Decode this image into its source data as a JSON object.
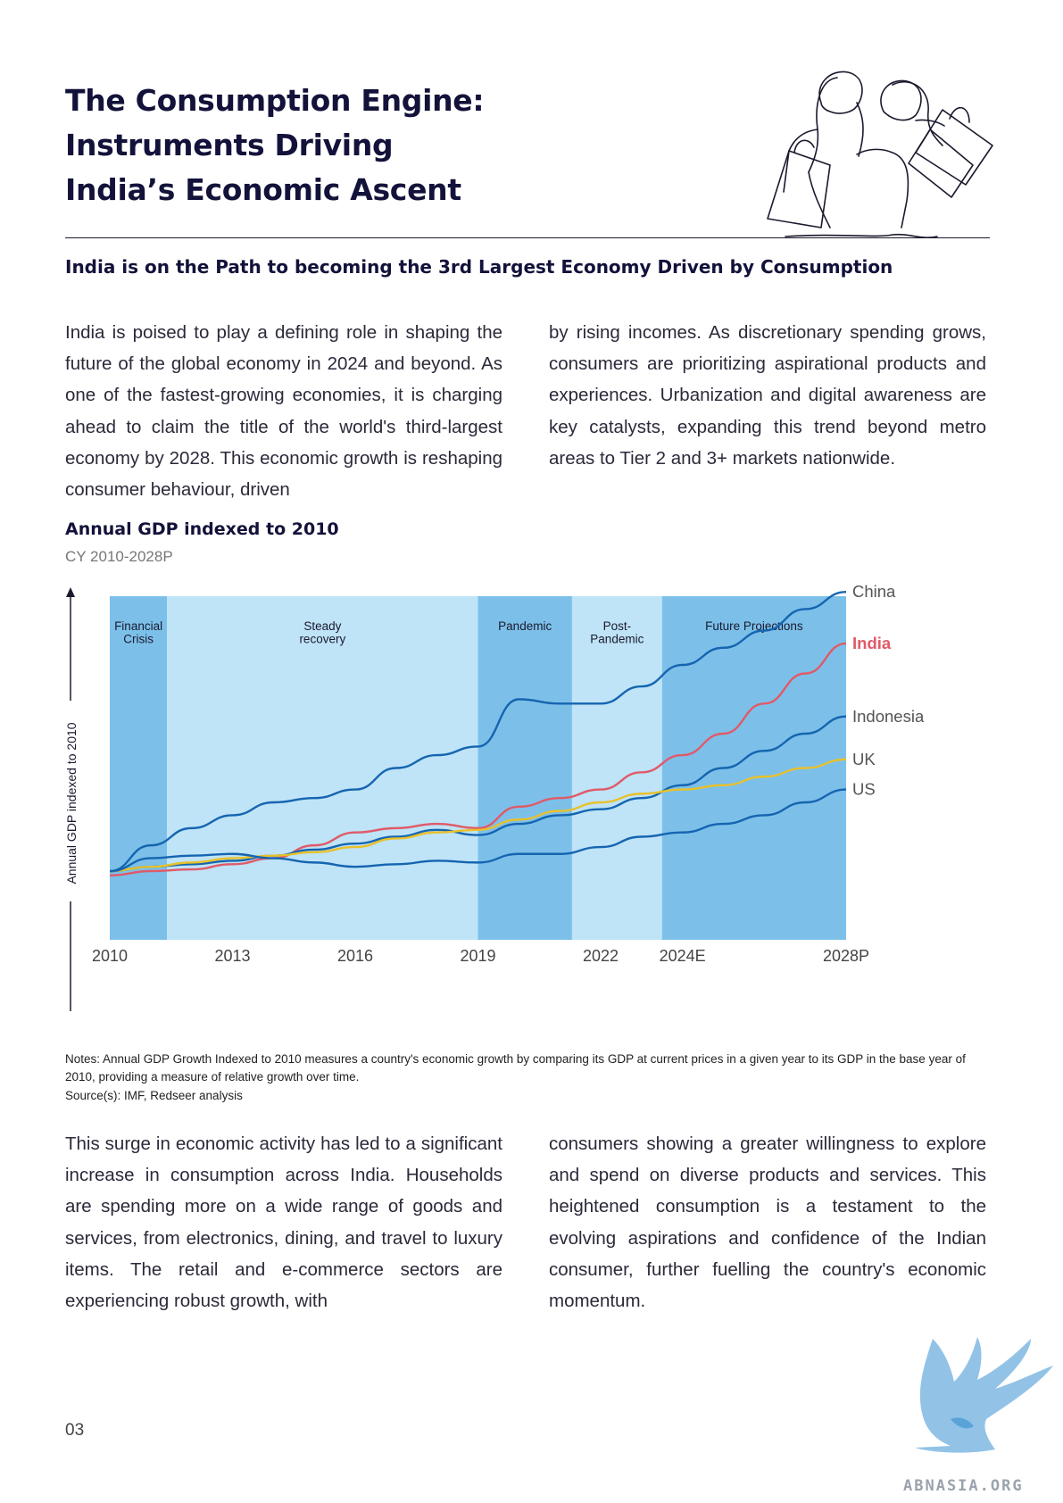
{
  "title_lines": [
    "The Consumption Engine:",
    "Instruments Driving",
    "India’s Economic Ascent"
  ],
  "subtitle": "India is on the Path to becoming the 3rd Largest Economy Driven by Consumption",
  "intro_col1": "India is poised to play a defining role in shaping the future of the global economy in 2024 and beyond. As one of the fastest-growing economies, it is charging ahead to claim the title of the world's third-largest economy by 2028. This economic growth is reshaping consumer behaviour, driven",
  "intro_col2": "by rising incomes. As discretionary spending grows, consumers are prioritizing aspirational products and experiences. Urbanization and digital awareness are key catalysts, expanding this trend beyond metro areas to Tier 2 and 3+ markets nationwide.",
  "outro_col1": "This surge in economic activity has led to a significant increase in consumption across India. Households are spending more on a wide range of goods and services, from electronics, dining, and travel to luxury items. The retail and e-commerce sectors are experiencing robust growth, with",
  "outro_col2": "consumers showing a greater willingness to explore and spend on diverse products and services. This heightened consumption is a testament to the evolving aspirations and confidence of the Indian consumer, further fuelling the country's economic momentum.",
  "notes": "Notes: Annual GDP Growth Indexed to 2010 measures a country's economic growth by comparing its GDP at current prices in a given year to its GDP in the base year of 2010, providing a measure of relative growth over time.",
  "source": "Source(s): IMF, Redseer analysis",
  "page_number": "03",
  "logo_text": "ABNASIA.ORG",
  "chart_data": {
    "type": "line",
    "title": "Annual GDP indexed to 2010",
    "subtitle": "CY 2010-2028P",
    "ylabel": "Annual GDP indexed to 2010",
    "xlabel": "",
    "x": [
      2010,
      2011,
      2012,
      2013,
      2014,
      2015,
      2016,
      2017,
      2018,
      2019,
      2020,
      2021,
      2022,
      2023,
      2024,
      2025,
      2026,
      2027,
      2028
    ],
    "x_ticks": [
      {
        "value": 2010,
        "label": "2010"
      },
      {
        "value": 2013,
        "label": "2013"
      },
      {
        "value": 2016,
        "label": "2016"
      },
      {
        "value": 2019,
        "label": "2019"
      },
      {
        "value": 2022,
        "label": "2022"
      },
      {
        "value": 2024,
        "label": "2024E"
      },
      {
        "value": 2028,
        "label": "2028P"
      }
    ],
    "xlim": [
      2010,
      2028
    ],
    "ylim": [
      0.2,
      4.2
    ],
    "grid": false,
    "legend": "right (end-of-line labels)",
    "highlight_color": "#e05a68",
    "periods": [
      {
        "label_lines": [
          "Financial",
          "Crisis"
        ],
        "start": 2010,
        "end": 2011.4,
        "shade": "dark"
      },
      {
        "label_lines": [
          "Steady",
          "recovery"
        ],
        "start": 2011.4,
        "end": 2019,
        "shade": "light"
      },
      {
        "label_lines": [
          "Pandemic"
        ],
        "start": 2019,
        "end": 2021.3,
        "shade": "dark"
      },
      {
        "label_lines": [
          "Post-",
          "Pandemic"
        ],
        "start": 2021.3,
        "end": 2023.5,
        "shade": "light"
      },
      {
        "label_lines": [
          "Future Projections"
        ],
        "start": 2023.5,
        "end": 2028,
        "shade": "dark"
      }
    ],
    "series": [
      {
        "name": "China",
        "color": "#1565b0",
        "values": [
          1.0,
          1.3,
          1.5,
          1.65,
          1.8,
          1.85,
          1.95,
          2.2,
          2.35,
          2.45,
          3.0,
          2.95,
          2.95,
          3.15,
          3.4,
          3.6,
          3.8,
          4.05,
          4.25
        ]
      },
      {
        "name": "India",
        "color": "#e05a68",
        "values": [
          0.95,
          1.0,
          1.02,
          1.08,
          1.15,
          1.3,
          1.45,
          1.5,
          1.55,
          1.5,
          1.75,
          1.85,
          1.95,
          2.15,
          2.35,
          2.6,
          2.95,
          3.3,
          3.65
        ]
      },
      {
        "name": "Indonesia",
        "color": "#1565b0",
        "values": [
          1.0,
          1.05,
          1.08,
          1.12,
          1.18,
          1.25,
          1.32,
          1.4,
          1.48,
          1.42,
          1.55,
          1.65,
          1.72,
          1.85,
          2.0,
          2.2,
          2.4,
          2.6,
          2.8
        ]
      },
      {
        "name": "UK",
        "color": "#e8c12a",
        "values": [
          1.0,
          1.05,
          1.1,
          1.15,
          1.18,
          1.22,
          1.28,
          1.38,
          1.45,
          1.48,
          1.6,
          1.7,
          1.8,
          1.9,
          1.95,
          2.0,
          2.1,
          2.2,
          2.3
        ]
      },
      {
        "name": "US",
        "color": "#1565b0",
        "values": [
          1.0,
          1.15,
          1.18,
          1.2,
          1.15,
          1.1,
          1.05,
          1.08,
          1.12,
          1.1,
          1.2,
          1.2,
          1.28,
          1.4,
          1.45,
          1.55,
          1.65,
          1.8,
          1.95
        ]
      }
    ]
  }
}
